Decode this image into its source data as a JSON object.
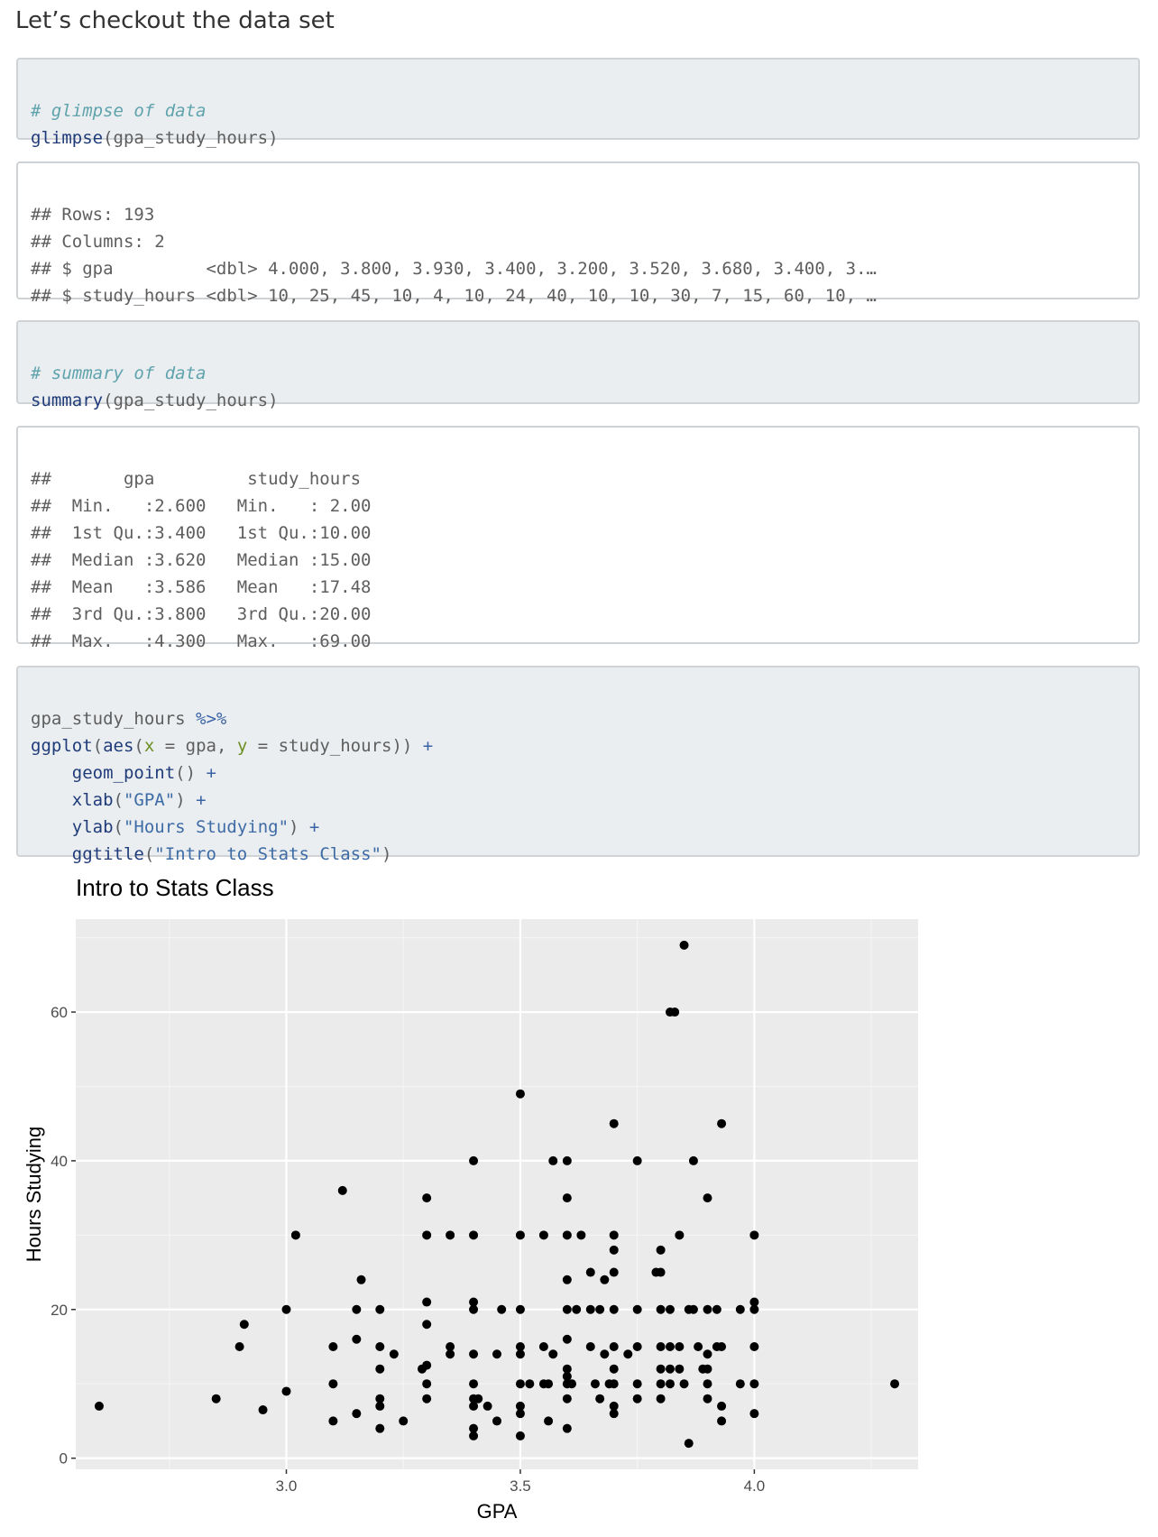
{
  "heading": "Let’s checkout the data set",
  "code1": {
    "comment": "# glimpse of data",
    "fn": "glimpse",
    "args": "(gpa_study_hours)"
  },
  "out1": {
    "lines": [
      "## Rows: 193",
      "## Columns: 2",
      "## $ gpa         <dbl> 4.000, 3.800, 3.930, 3.400, 3.200, 3.520, 3.680, 3.400, 3.…",
      "## $ study_hours <dbl> 10, 25, 45, 10, 4, 10, 24, 40, 10, 10, 30, 7, 15, 60, 10, …"
    ]
  },
  "code2": {
    "comment": "# summary of data",
    "fn": "summary",
    "args": "(gpa_study_hours)"
  },
  "out2": {
    "lines": [
      "##       gpa         study_hours   ",
      "##  Min.   :2.600   Min.   : 2.00  ",
      "##  1st Qu.:3.400   1st Qu.:10.00  ",
      "##  Median :3.620   Median :15.00  ",
      "##  Mean   :3.586   Mean   :17.48  ",
      "##  3rd Qu.:3.800   3rd Qu.:20.00  ",
      "##  Max.   :4.300   Max.   :69.00  "
    ]
  },
  "code3": {
    "l1_a": "gpa_study_hours ",
    "l1_op": "%>%",
    "l2_fn": "ggplot",
    "l2_b": "(",
    "l2_fn2": "aes",
    "l2_c": "(",
    "l2_x": "x",
    "l2_d": " = gpa, ",
    "l2_y": "y",
    "l2_e": " = study_hours)) ",
    "l2_op": "+",
    "l3_indent": "    ",
    "l3_fn": "geom_point",
    "l3_b": "() ",
    "l3_op": "+",
    "l4_fn": "xlab",
    "l4_b": "(",
    "l4_str": "\"GPA\"",
    "l4_c": ") ",
    "l4_op": "+",
    "l5_fn": "ylab",
    "l5_b": "(",
    "l5_str": "\"Hours Studying\"",
    "l5_c": ") ",
    "l5_op": "+",
    "l6_fn": "ggtitle",
    "l6_b": "(",
    "l6_str": "\"Intro to Stats Class\"",
    "l6_c": ")"
  },
  "colors": {
    "panel": "#ebebeb",
    "grid_major": "#ffffff",
    "grid_minor": "#f4f4f4",
    "point": "#000000",
    "code_bg": "#ebeef0"
  },
  "chart_data": {
    "type": "scatter",
    "title": "Intro to Stats Class",
    "xlabel": "GPA",
    "ylabel": "Hours Studying",
    "xlim": [
      2.55,
      4.35
    ],
    "ylim": [
      -1.5,
      72.5
    ],
    "xticks": [
      3.0,
      3.5,
      4.0
    ],
    "xtick_labels": [
      "3.0",
      "3.5",
      "4.0"
    ],
    "yticks": [
      0,
      20,
      40,
      60
    ],
    "ytick_labels": [
      "0",
      "20",
      "40",
      "60"
    ],
    "grid": true,
    "points": [
      [
        2.6,
        7
      ],
      [
        2.85,
        8
      ],
      [
        2.9,
        15
      ],
      [
        2.91,
        18
      ],
      [
        2.95,
        6.5
      ],
      [
        3.0,
        20
      ],
      [
        3.0,
        9
      ],
      [
        3.02,
        30
      ],
      [
        3.1,
        15
      ],
      [
        3.1,
        10
      ],
      [
        3.1,
        5
      ],
      [
        3.12,
        36
      ],
      [
        3.15,
        16
      ],
      [
        3.15,
        20
      ],
      [
        3.15,
        6
      ],
      [
        3.16,
        24
      ],
      [
        3.2,
        20
      ],
      [
        3.2,
        15
      ],
      [
        3.2,
        12
      ],
      [
        3.2,
        8
      ],
      [
        3.2,
        7
      ],
      [
        3.2,
        4
      ],
      [
        3.23,
        14
      ],
      [
        3.25,
        5
      ],
      [
        3.29,
        12
      ],
      [
        3.3,
        12.5
      ],
      [
        3.3,
        35
      ],
      [
        3.3,
        30
      ],
      [
        3.3,
        21
      ],
      [
        3.3,
        18
      ],
      [
        3.3,
        10
      ],
      [
        3.3,
        8
      ],
      [
        3.35,
        30
      ],
      [
        3.35,
        15
      ],
      [
        3.35,
        14
      ],
      [
        3.4,
        40
      ],
      [
        3.4,
        30
      ],
      [
        3.4,
        21
      ],
      [
        3.4,
        20
      ],
      [
        3.4,
        14
      ],
      [
        3.4,
        10
      ],
      [
        3.4,
        8
      ],
      [
        3.4,
        7
      ],
      [
        3.4,
        4
      ],
      [
        3.4,
        3
      ],
      [
        3.41,
        8
      ],
      [
        3.43,
        7
      ],
      [
        3.45,
        14
      ],
      [
        3.45,
        5
      ],
      [
        3.46,
        20
      ],
      [
        3.5,
        49
      ],
      [
        3.5,
        30
      ],
      [
        3.5,
        20
      ],
      [
        3.5,
        15
      ],
      [
        3.5,
        14
      ],
      [
        3.5,
        10
      ],
      [
        3.5,
        7
      ],
      [
        3.5,
        6
      ],
      [
        3.5,
        3
      ],
      [
        3.52,
        10
      ],
      [
        3.55,
        30
      ],
      [
        3.55,
        15
      ],
      [
        3.55,
        10
      ],
      [
        3.56,
        10
      ],
      [
        3.56,
        5
      ],
      [
        3.57,
        40
      ],
      [
        3.57,
        14
      ],
      [
        3.6,
        40
      ],
      [
        3.6,
        35
      ],
      [
        3.6,
        30
      ],
      [
        3.6,
        24
      ],
      [
        3.6,
        20
      ],
      [
        3.6,
        16
      ],
      [
        3.6,
        12
      ],
      [
        3.6,
        11
      ],
      [
        3.6,
        10
      ],
      [
        3.6,
        8
      ],
      [
        3.6,
        4
      ],
      [
        3.61,
        10
      ],
      [
        3.62,
        20
      ],
      [
        3.63,
        30
      ],
      [
        3.65,
        25
      ],
      [
        3.65,
        20
      ],
      [
        3.65,
        15
      ],
      [
        3.66,
        10
      ],
      [
        3.67,
        20
      ],
      [
        3.67,
        8
      ],
      [
        3.68,
        24
      ],
      [
        3.68,
        14
      ],
      [
        3.69,
        10
      ],
      [
        3.7,
        45
      ],
      [
        3.7,
        30
      ],
      [
        3.7,
        28
      ],
      [
        3.7,
        25
      ],
      [
        3.7,
        20
      ],
      [
        3.7,
        15
      ],
      [
        3.7,
        12
      ],
      [
        3.7,
        10
      ],
      [
        3.7,
        7
      ],
      [
        3.7,
        6
      ],
      [
        3.73,
        14
      ],
      [
        3.75,
        40
      ],
      [
        3.75,
        20
      ],
      [
        3.75,
        15
      ],
      [
        3.75,
        10
      ],
      [
        3.75,
        8
      ],
      [
        3.79,
        25
      ],
      [
        3.8,
        28
      ],
      [
        3.8,
        25
      ],
      [
        3.8,
        20
      ],
      [
        3.8,
        15
      ],
      [
        3.8,
        12
      ],
      [
        3.8,
        10
      ],
      [
        3.8,
        8
      ],
      [
        3.82,
        60
      ],
      [
        3.83,
        60
      ],
      [
        3.82,
        20
      ],
      [
        3.82,
        15
      ],
      [
        3.82,
        12
      ],
      [
        3.82,
        10
      ],
      [
        3.84,
        30
      ],
      [
        3.84,
        15
      ],
      [
        3.84,
        12
      ],
      [
        3.85,
        69
      ],
      [
        3.85,
        10
      ],
      [
        3.86,
        20
      ],
      [
        3.86,
        2
      ],
      [
        3.87,
        40
      ],
      [
        3.87,
        20
      ],
      [
        3.88,
        15
      ],
      [
        3.89,
        12
      ],
      [
        3.9,
        35
      ],
      [
        3.9,
        20
      ],
      [
        3.9,
        14
      ],
      [
        3.9,
        12
      ],
      [
        3.9,
        10
      ],
      [
        3.9,
        8
      ],
      [
        3.92,
        20
      ],
      [
        3.92,
        15
      ],
      [
        3.93,
        45
      ],
      [
        3.93,
        15
      ],
      [
        3.93,
        7
      ],
      [
        3.93,
        5
      ],
      [
        3.97,
        20
      ],
      [
        3.97,
        10
      ],
      [
        4.0,
        30
      ],
      [
        4.0,
        21
      ],
      [
        4.0,
        20
      ],
      [
        4.0,
        15
      ],
      [
        4.0,
        10
      ],
      [
        4.0,
        6
      ],
      [
        4.3,
        10
      ]
    ]
  }
}
